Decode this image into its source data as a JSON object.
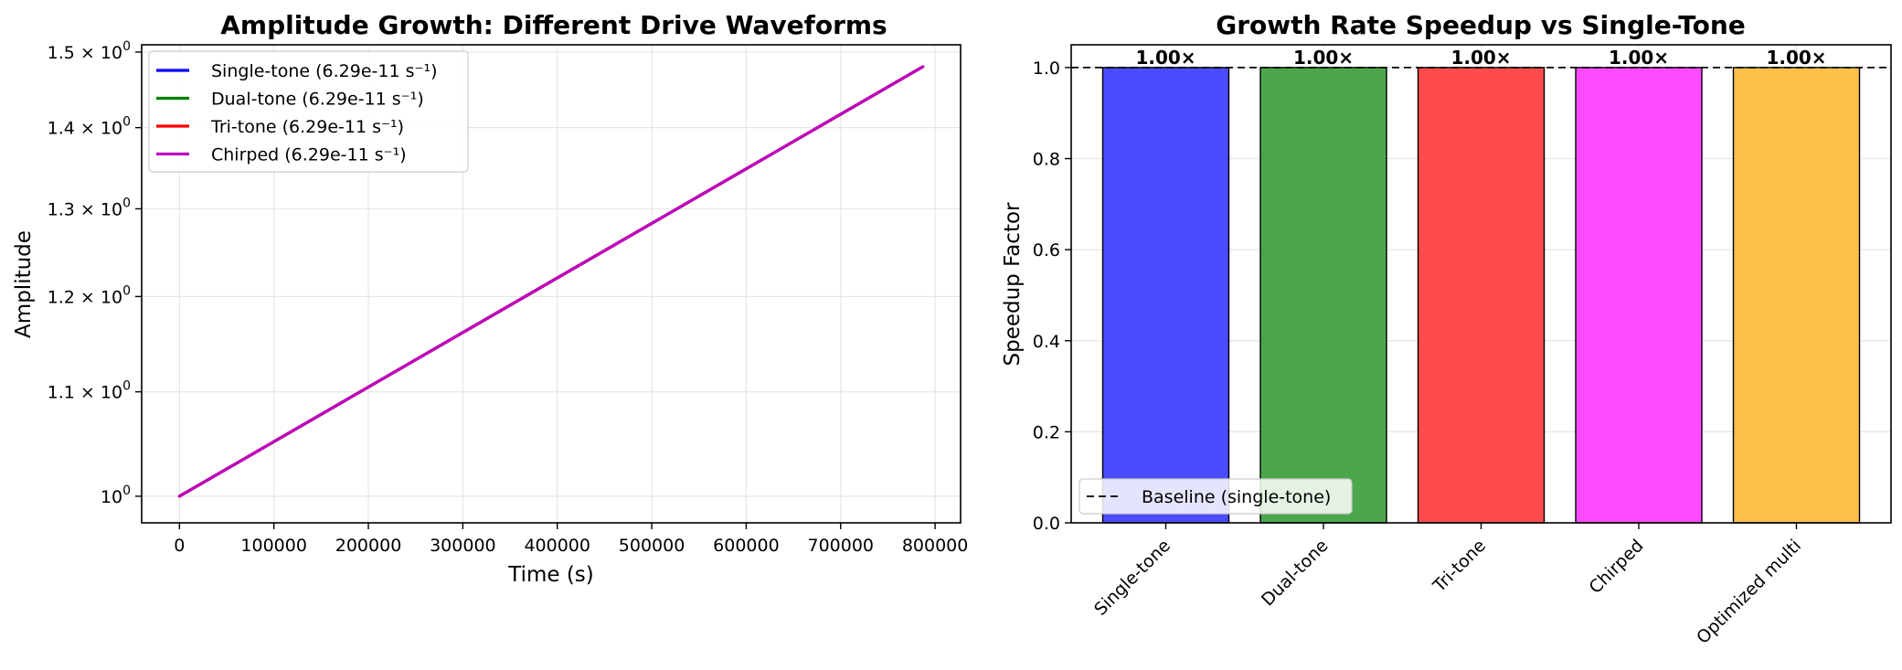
{
  "chart_data": [
    {
      "type": "line",
      "title": "Amplitude Growth: Different Drive Waveforms",
      "xlabel": "Time (s)",
      "ylabel": "Amplitude",
      "yscale": "log",
      "xlim": [
        -40000,
        827000
      ],
      "ylim": [
        0.976,
        1.51
      ],
      "x_ticks": [
        0,
        100000,
        200000,
        300000,
        400000,
        500000,
        600000,
        700000,
        800000
      ],
      "x_tick_labels": [
        "0",
        "100000",
        "200000",
        "300000",
        "400000",
        "500000",
        "600000",
        "700000",
        "800000"
      ],
      "y_ticks": [
        1.0,
        1.1,
        1.2,
        1.3,
        1.4,
        1.5
      ],
      "y_tick_labels": [
        {
          "mantissa": "",
          "exp": "0"
        },
        {
          "mantissa": "1.1",
          "exp": "0"
        },
        {
          "mantissa": "1.2",
          "exp": "0"
        },
        {
          "mantissa": "1.3",
          "exp": "0"
        },
        {
          "mantissa": "1.4",
          "exp": "0"
        },
        {
          "mantissa": "1.5",
          "exp": "0"
        }
      ],
      "grid": true,
      "legend": "top-left",
      "series": [
        {
          "name": "Single-tone (6.29e-11 s⁻¹)",
          "color": "#0000ff",
          "x": [
            0,
            787000
          ],
          "y": [
            1.0,
            1.48
          ]
        },
        {
          "name": "Dual-tone (6.29e-11 s⁻¹)",
          "color": "#008000",
          "x": [
            0,
            787000
          ],
          "y": [
            1.0,
            1.48
          ]
        },
        {
          "name": "Tri-tone (6.29e-11 s⁻¹)",
          "color": "#ff0000",
          "x": [
            0,
            787000
          ],
          "y": [
            1.0,
            1.48
          ]
        },
        {
          "name": "Chirped (6.29e-11 s⁻¹)",
          "color": "#bf00bf",
          "x": [
            0,
            787000
          ],
          "y": [
            1.0,
            1.48
          ]
        }
      ]
    },
    {
      "type": "bar",
      "title": "Growth Rate Speedup vs Single-Tone",
      "xlabel": "",
      "ylabel": "Speedup Factor",
      "ylim": [
        0,
        1.05
      ],
      "y_ticks": [
        0.0,
        0.2,
        0.4,
        0.6,
        0.8,
        1.0
      ],
      "y_tick_labels": [
        "0.0",
        "0.2",
        "0.4",
        "0.6",
        "0.8",
        "1.0"
      ],
      "grid": true,
      "legend": "bottom-left",
      "categories": [
        "Single-tone",
        "Dual-tone",
        "Tri-tone",
        "Chirped",
        "Optimized multi"
      ],
      "values": [
        1.0,
        1.0,
        1.0,
        1.0,
        1.0
      ],
      "data_labels": [
        "1.00×",
        "1.00×",
        "1.00×",
        "1.00×",
        "1.00×"
      ],
      "colors": [
        "#4b4bff",
        "#4ca64c",
        "#ff4b4b",
        "#ff4bff",
        "#ffbf4b"
      ],
      "baseline": {
        "value": 1.0,
        "label": "Baseline (single-tone)"
      }
    }
  ]
}
